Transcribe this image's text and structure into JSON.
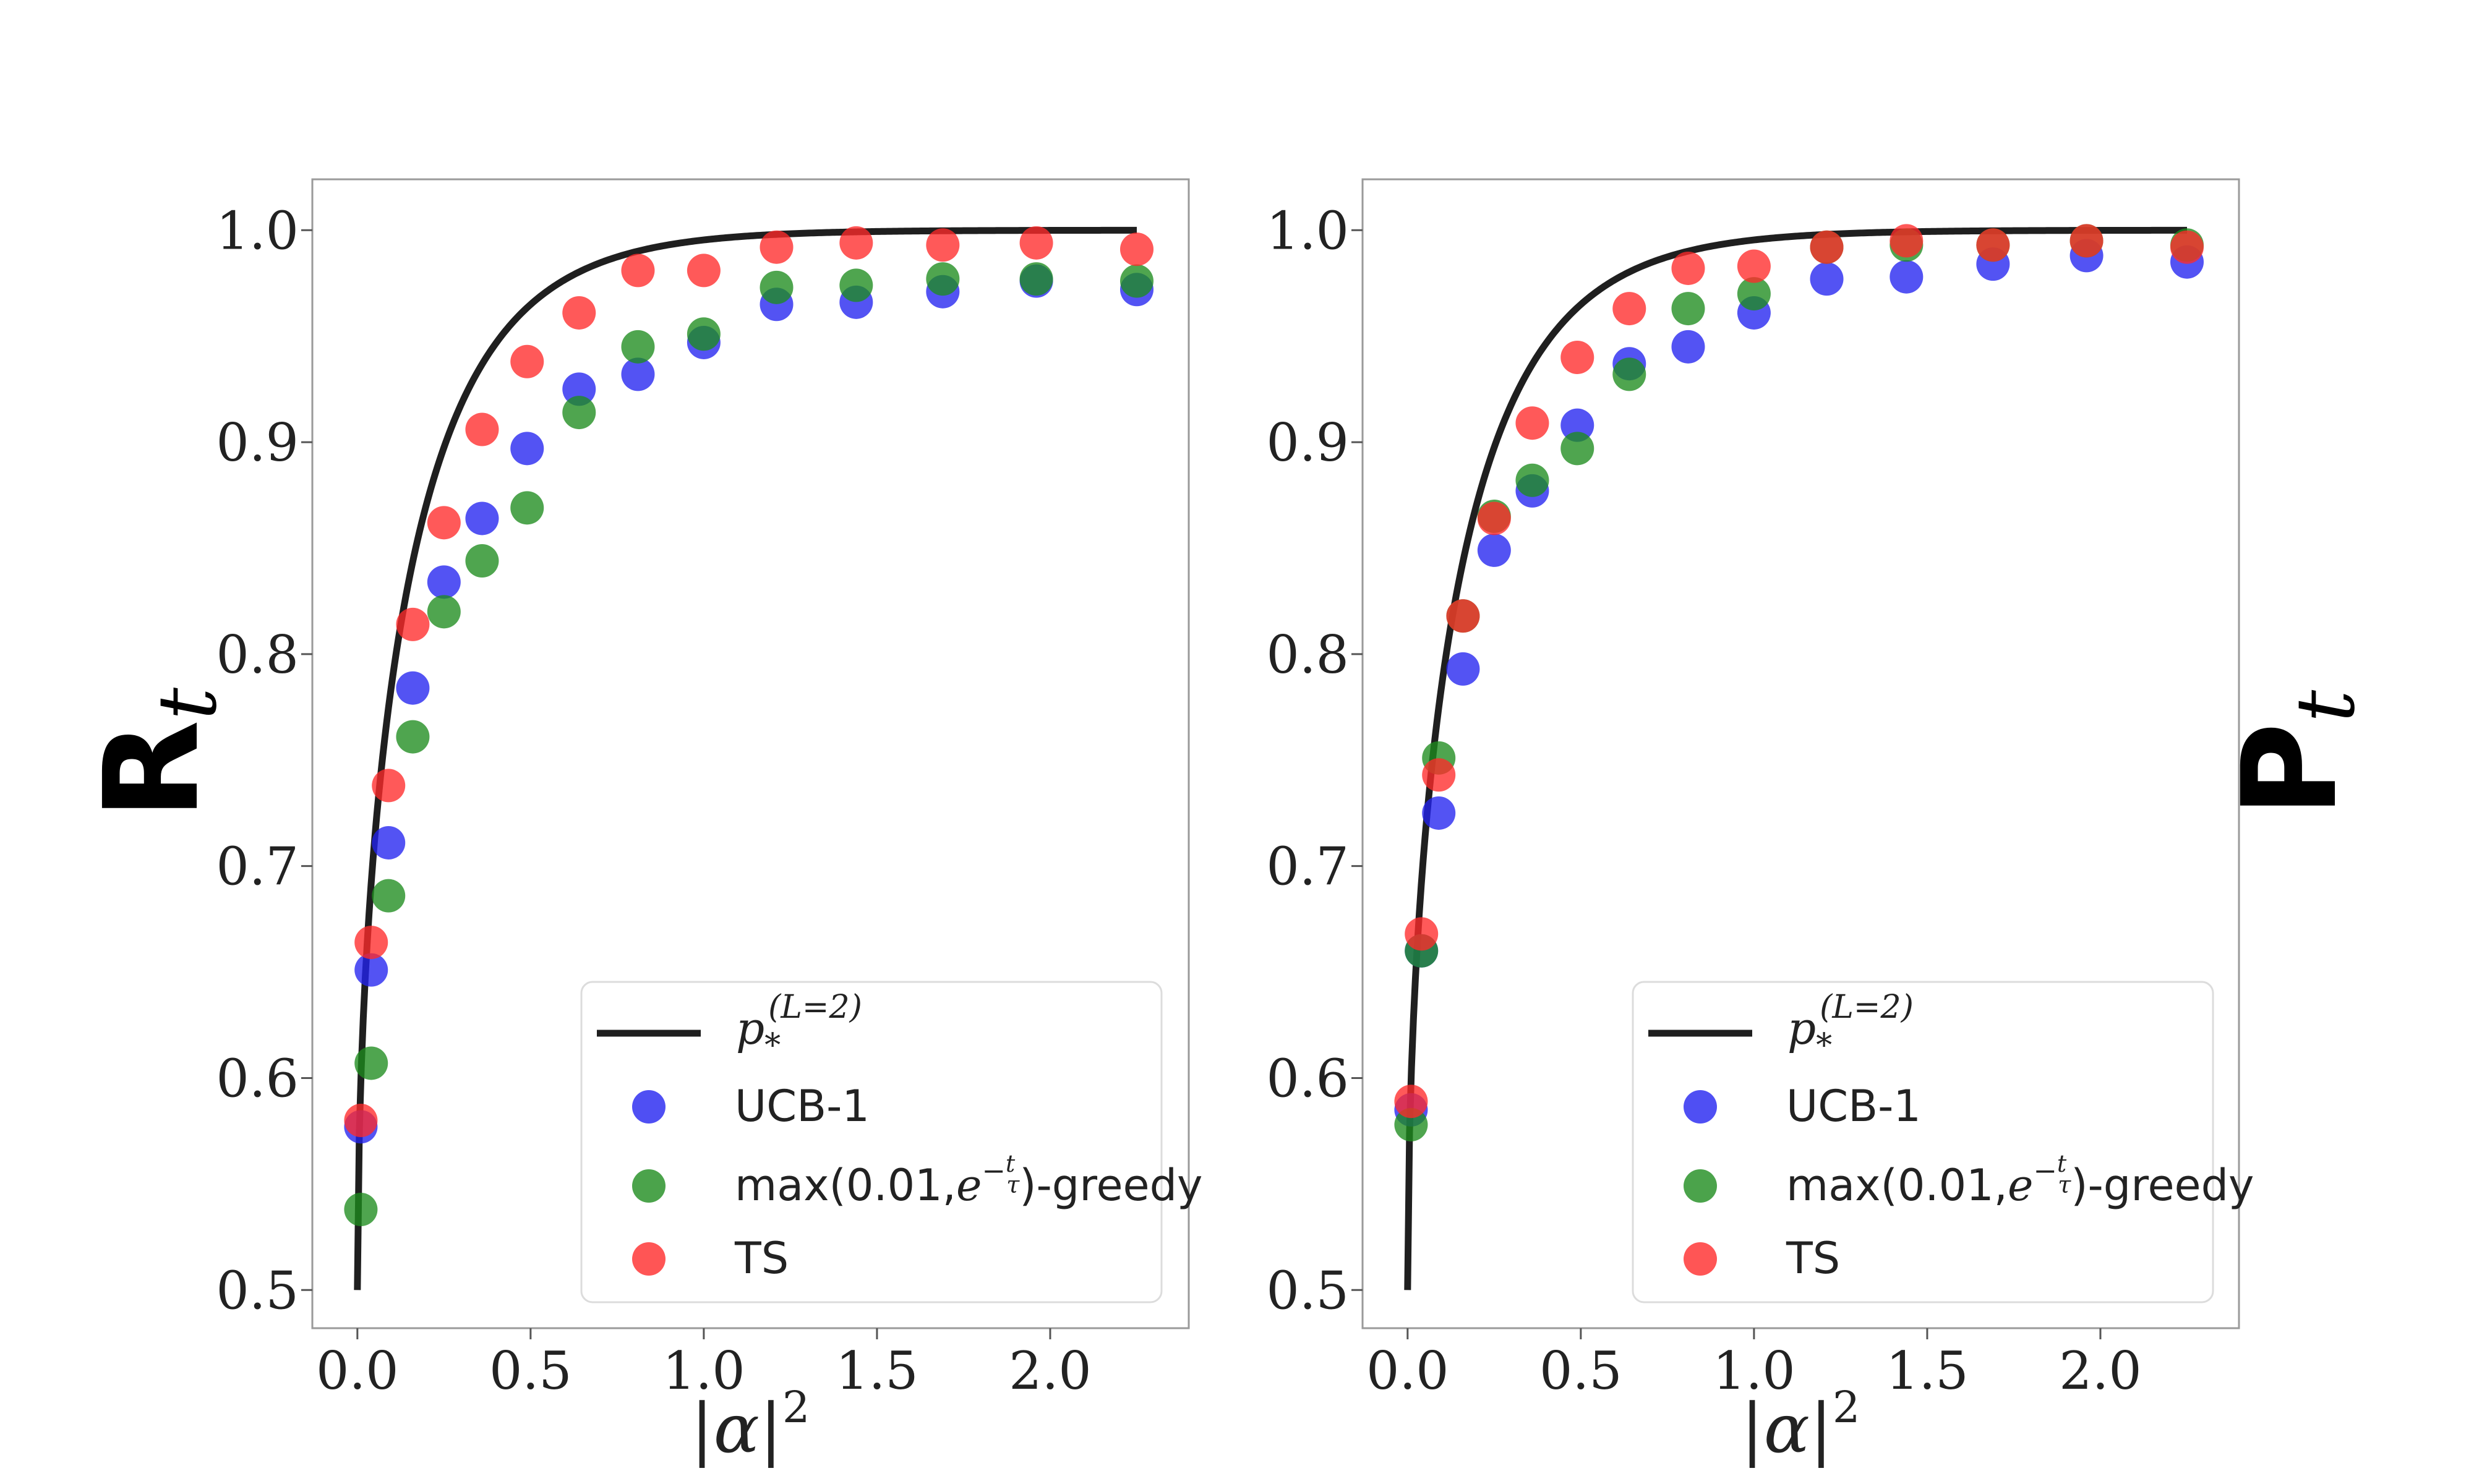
{
  "chart_data": [
    {
      "type": "scatter",
      "panel": "left",
      "ylabel": "R",
      "ylabel_subscript": "t",
      "xlabel": "|α|",
      "xlabel_superscript": "2",
      "xlim": [
        -0.13,
        2.4
      ],
      "ylim": [
        0.482,
        1.024
      ],
      "xticks": [
        0.0,
        0.5,
        1.0,
        1.5,
        2.0
      ],
      "xtick_labels": [
        "0.0",
        "0.5",
        "1.0",
        "1.5",
        "2.0"
      ],
      "yticks": [
        0.5,
        0.6,
        0.7,
        0.8,
        0.9,
        1.0
      ],
      "ytick_labels": [
        "0.5",
        "0.6",
        "0.7",
        "0.8",
        "0.9",
        "1.0"
      ],
      "legend_position": "lower-right",
      "curve": {
        "name": "p_*^(L=2)",
        "x_range": [
          0.0,
          2.25
        ],
        "color": "#1f1f1f",
        "formula": "0.5 + 0.5*sqrt(1 - exp(-4x))"
      },
      "x": [
        0.01,
        0.04,
        0.09,
        0.16,
        0.25,
        0.36,
        0.49,
        0.64,
        0.81,
        1.0,
        1.21,
        1.44,
        1.69,
        1.96,
        2.25
      ],
      "series": [
        {
          "name": "UCB-1",
          "color": "#2323f0",
          "values": [
            0.577,
            0.651,
            0.711,
            0.784,
            0.834,
            0.864,
            0.897,
            0.925,
            0.932,
            0.947,
            0.965,
            0.966,
            0.971,
            0.976,
            0.972
          ]
        },
        {
          "name": "max(0.01,e^{-t/τ})-greedy",
          "color": "#1e8c1e",
          "values": [
            0.538,
            0.607,
            0.686,
            0.761,
            0.82,
            0.844,
            0.869,
            0.914,
            0.945,
            0.951,
            0.973,
            0.974,
            0.977,
            0.977,
            0.976
          ]
        },
        {
          "name": "TS",
          "color": "#ff2a2a",
          "values": [
            0.58,
            0.664,
            0.738,
            0.814,
            0.862,
            0.906,
            0.938,
            0.961,
            0.981,
            0.981,
            0.992,
            0.994,
            0.993,
            0.994,
            0.991
          ]
        }
      ]
    },
    {
      "type": "scatter",
      "panel": "right",
      "ylabel": "P",
      "ylabel_subscript": "t",
      "xlabel": "|α|",
      "xlabel_superscript": "2",
      "xlim": [
        -0.13,
        2.4
      ],
      "ylim": [
        0.482,
        1.024
      ],
      "xticks": [
        0.0,
        0.5,
        1.0,
        1.5,
        2.0
      ],
      "xtick_labels": [
        "0.0",
        "0.5",
        "1.0",
        "1.5",
        "2.0"
      ],
      "yticks": [
        0.5,
        0.6,
        0.7,
        0.8,
        0.9,
        1.0
      ],
      "ytick_labels": [
        "0.5",
        "0.6",
        "0.7",
        "0.8",
        "0.9",
        "1.0"
      ],
      "legend_position": "lower-right",
      "curve": {
        "name": "p_*^(L=2)",
        "x_range": [
          0.0,
          2.25
        ],
        "color": "#1f1f1f",
        "formula": "0.5 + 0.5*sqrt(1 - exp(-4x))"
      },
      "x": [
        0.01,
        0.04,
        0.09,
        0.16,
        0.25,
        0.36,
        0.49,
        0.64,
        0.81,
        1.0,
        1.21,
        1.44,
        1.69,
        1.96,
        2.25
      ],
      "series": [
        {
          "name": "UCB-1",
          "color": "#2323f0",
          "values": [
            0.585,
            0.66,
            0.725,
            0.793,
            0.849,
            0.877,
            0.908,
            0.937,
            0.945,
            0.961,
            0.977,
            0.978,
            0.984,
            0.988,
            0.985
          ]
        },
        {
          "name": "max(0.01,e^{-t/τ})-greedy",
          "color": "#1e8c1e",
          "values": [
            0.578,
            0.66,
            0.751,
            0.818,
            0.865,
            0.882,
            0.897,
            0.932,
            0.963,
            0.97,
            0.992,
            0.993,
            0.993,
            0.995,
            0.993
          ]
        },
        {
          "name": "TS",
          "color": "#ff2a2a",
          "values": [
            0.589,
            0.668,
            0.743,
            0.818,
            0.864,
            0.909,
            0.94,
            0.963,
            0.982,
            0.983,
            0.992,
            0.995,
            0.993,
            0.995,
            0.992
          ]
        }
      ]
    }
  ],
  "legend": {
    "curve_label": "p",
    "curve_label_sub": "*",
    "curve_label_sup": "(L=2)",
    "ucb_label": "UCB-1",
    "greedy_prefix": "max(0.01,",
    "greedy_base": "e",
    "greedy_exp_sign": "−",
    "greedy_exp_num": "t",
    "greedy_exp_den": "τ",
    "greedy_suffix": ")-greedy",
    "ts_label": "TS"
  }
}
